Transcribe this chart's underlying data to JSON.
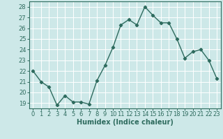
{
  "x": [
    0,
    1,
    2,
    3,
    4,
    5,
    6,
    7,
    8,
    9,
    10,
    11,
    12,
    13,
    14,
    15,
    16,
    17,
    18,
    19,
    20,
    21,
    22,
    23
  ],
  "y": [
    22,
    21,
    20.5,
    18.8,
    19.7,
    19.1,
    19.1,
    18.9,
    21.1,
    22.5,
    24.2,
    26.3,
    26.8,
    26.3,
    28.0,
    27.2,
    26.5,
    26.5,
    25.0,
    23.2,
    23.8,
    24.0,
    23.0,
    21.3
  ],
  "xlabel": "Humidex (Indice chaleur)",
  "ylim": [
    18.5,
    28.5
  ],
  "xlim": [
    -0.5,
    23.5
  ],
  "yticks": [
    19,
    20,
    21,
    22,
    23,
    24,
    25,
    26,
    27,
    28
  ],
  "xticks": [
    0,
    1,
    2,
    3,
    4,
    5,
    6,
    7,
    8,
    9,
    10,
    11,
    12,
    13,
    14,
    15,
    16,
    17,
    18,
    19,
    20,
    21,
    22,
    23
  ],
  "line_color": "#2e6b5e",
  "marker": "D",
  "marker_size": 2.2,
  "bg_color": "#cde8e8",
  "grid_color": "#ffffff",
  "grid_minor_color": "#f0c8c8",
  "xlabel_fontsize": 7,
  "tick_fontsize": 6
}
